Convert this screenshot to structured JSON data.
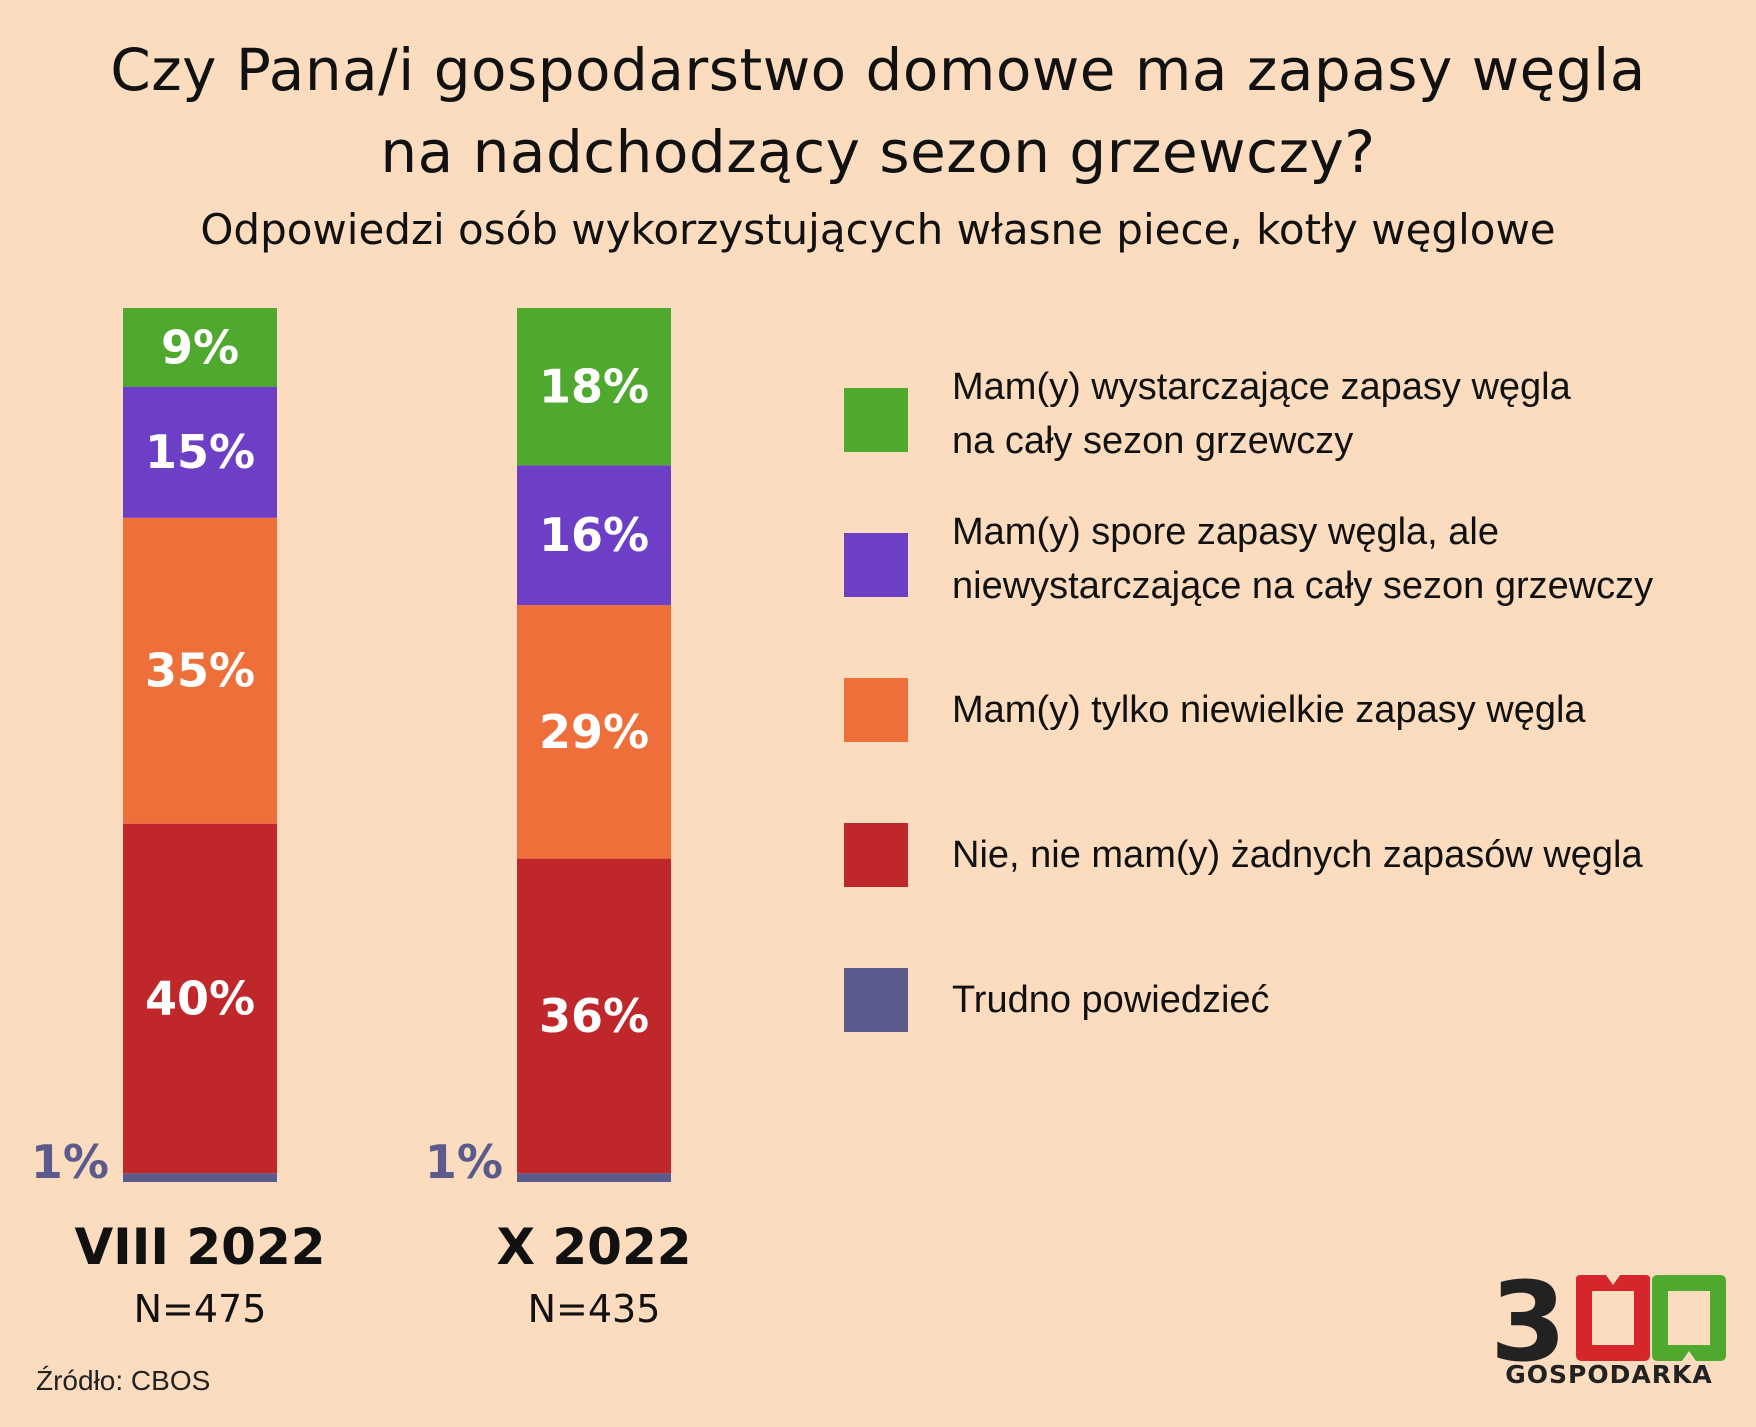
{
  "title_line1": "Czy Pana/i gospodarstwo domowe ma zapasy węgla",
  "title_line2": "na nadchodzący sezon grzewczy?",
  "subtitle": "Odpowiedzi osób wykorzystujących własne piece, kotły węglowe",
  "source": "Źródło: CBOS",
  "logo": {
    "number": "300",
    "name": "GOSPODARKA"
  },
  "chart_data": {
    "type": "bar",
    "stacked": true,
    "unit": "%",
    "categories": [
      "VIII 2022",
      "X 2022"
    ],
    "sample_sizes": [
      "N=475",
      "N=435"
    ],
    "series": [
      {
        "name": "Trudno powiedzieć",
        "color": "#5a5a8c",
        "values": [
          1,
          1
        ],
        "labels": [
          "1%",
          "1%"
        ]
      },
      {
        "name": "Nie, nie mam(y) żadnych zapasów węgla",
        "color": "#c0272a",
        "values": [
          40,
          36
        ],
        "labels": [
          "40%",
          "36%"
        ]
      },
      {
        "name": "Mam(y) tylko niewielkie zapasy węgla",
        "color": "#ef6f3a",
        "values": [
          35,
          29
        ],
        "labels": [
          "35%",
          "29%"
        ]
      },
      {
        "name": "Mam(y) spore zapasy węgla, ale niewystarczające na cały sezon grzewczy",
        "color": "#6d3ec6",
        "values": [
          15,
          16
        ],
        "labels": [
          "15%",
          "16%"
        ]
      },
      {
        "name": "Mam(y) wystarczające zapasy węgla na cały sezon grzewczy",
        "color": "#4ea92e",
        "values": [
          9,
          18
        ],
        "labels": [
          "9%",
          "18%"
        ]
      }
    ],
    "legend": [
      {
        "line1": "Mam(y) wystarczające zapasy węgla",
        "line2": "na cały sezon grzewczy",
        "color": "#4ea92e"
      },
      {
        "line1": "Mam(y) spore zapasy węgla, ale",
        "line2": "niewystarczające na cały sezon grzewczy",
        "color": "#6d3ec6"
      },
      {
        "line1": "Mam(y) tylko niewielkie zapasy węgla",
        "line2": "",
        "color": "#ef6f3a"
      },
      {
        "line1": "Nie, nie mam(y) żadnych zapasów węgla",
        "line2": "",
        "color": "#c0272a"
      },
      {
        "line1": "Trudno powiedzieć",
        "line2": "",
        "color": "#5a5a8c"
      }
    ],
    "legend_position": "right"
  }
}
